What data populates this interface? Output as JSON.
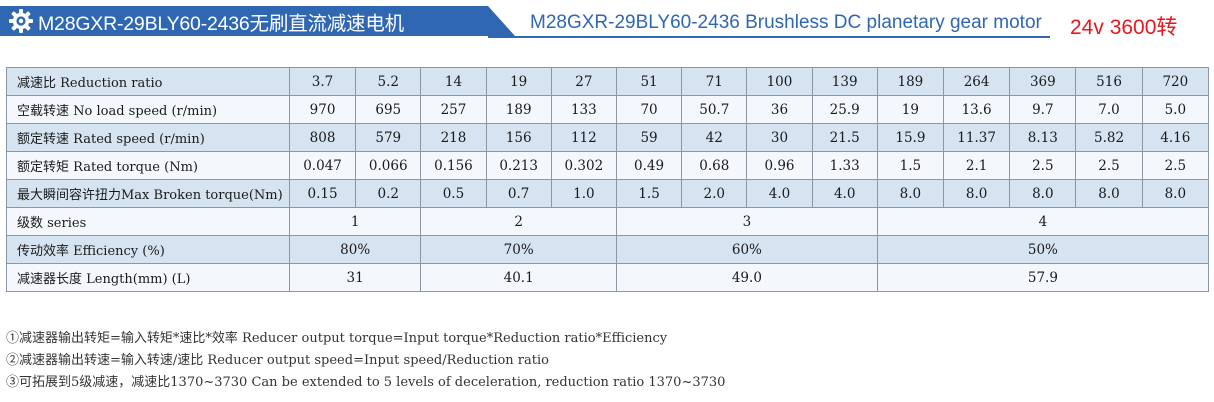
{
  "header": {
    "icon": "gear-icon",
    "title_cn": "M28GXR-29BLY60-2436无刷直流减速电机",
    "title_en": "M28GXR-29BLY60-2436 Brushless DC planetary gear motor",
    "spec": "24v 3600转",
    "colors": {
      "band": "#2f67b3",
      "spec": "#e5171f"
    }
  },
  "table": {
    "rows": [
      {
        "label": "减速比  Reduction ratio",
        "cells": [
          {
            "v": "3.7",
            "span": 1
          },
          {
            "v": "5.2",
            "span": 1
          },
          {
            "v": "14",
            "span": 1
          },
          {
            "v": "19",
            "span": 1
          },
          {
            "v": "27",
            "span": 1
          },
          {
            "v": "51",
            "span": 1
          },
          {
            "v": "71",
            "span": 1
          },
          {
            "v": "100",
            "span": 1
          },
          {
            "v": "139",
            "span": 1
          },
          {
            "v": "189",
            "span": 1
          },
          {
            "v": "264",
            "span": 1
          },
          {
            "v": "369",
            "span": 1
          },
          {
            "v": "516",
            "span": 1
          },
          {
            "v": "720",
            "span": 1
          }
        ]
      },
      {
        "label": "空载转速 No load speed (r/min)",
        "cells": [
          {
            "v": "970",
            "span": 1
          },
          {
            "v": "695",
            "span": 1
          },
          {
            "v": "257",
            "span": 1
          },
          {
            "v": "189",
            "span": 1
          },
          {
            "v": "133",
            "span": 1
          },
          {
            "v": "70",
            "span": 1
          },
          {
            "v": "50.7",
            "span": 1
          },
          {
            "v": "36",
            "span": 1
          },
          {
            "v": "25.9",
            "span": 1
          },
          {
            "v": "19",
            "span": 1
          },
          {
            "v": "13.6",
            "span": 1
          },
          {
            "v": "9.7",
            "span": 1
          },
          {
            "v": "7.0",
            "span": 1
          },
          {
            "v": "5.0",
            "span": 1
          }
        ]
      },
      {
        "label": "额定转速 Rated speed (r/min)",
        "cells": [
          {
            "v": "808",
            "span": 1
          },
          {
            "v": "579",
            "span": 1
          },
          {
            "v": "218",
            "span": 1
          },
          {
            "v": "156",
            "span": 1
          },
          {
            "v": "112",
            "span": 1
          },
          {
            "v": "59",
            "span": 1
          },
          {
            "v": "42",
            "span": 1
          },
          {
            "v": "30",
            "span": 1
          },
          {
            "v": "21.5",
            "span": 1
          },
          {
            "v": "15.9",
            "span": 1
          },
          {
            "v": "11.37",
            "span": 1
          },
          {
            "v": "8.13",
            "span": 1
          },
          {
            "v": "5.82",
            "span": 1
          },
          {
            "v": "4.16",
            "span": 1
          }
        ]
      },
      {
        "label": "额定转矩 Rated torque (Nm)",
        "cells": [
          {
            "v": "0.047",
            "span": 1
          },
          {
            "v": "0.066",
            "span": 1
          },
          {
            "v": "0.156",
            "span": 1
          },
          {
            "v": "0.213",
            "span": 1
          },
          {
            "v": "0.302",
            "span": 1
          },
          {
            "v": "0.49",
            "span": 1
          },
          {
            "v": "0.68",
            "span": 1
          },
          {
            "v": "0.96",
            "span": 1
          },
          {
            "v": "1.33",
            "span": 1
          },
          {
            "v": "1.5",
            "span": 1
          },
          {
            "v": "2.1",
            "span": 1
          },
          {
            "v": "2.5",
            "span": 1
          },
          {
            "v": "2.5",
            "span": 1
          },
          {
            "v": "2.5",
            "span": 1
          }
        ]
      },
      {
        "label": "最大瞬间容许扭力Max Broken torque(Nm)",
        "cells": [
          {
            "v": "0.15",
            "span": 1
          },
          {
            "v": "0.2",
            "span": 1
          },
          {
            "v": "0.5",
            "span": 1
          },
          {
            "v": "0.7",
            "span": 1
          },
          {
            "v": "1.0",
            "span": 1
          },
          {
            "v": "1.5",
            "span": 1
          },
          {
            "v": "2.0",
            "span": 1
          },
          {
            "v": "4.0",
            "span": 1
          },
          {
            "v": "4.0",
            "span": 1
          },
          {
            "v": "8.0",
            "span": 1
          },
          {
            "v": "8.0",
            "span": 1
          },
          {
            "v": "8.0",
            "span": 1
          },
          {
            "v": "8.0",
            "span": 1
          },
          {
            "v": "8.0",
            "span": 1
          }
        ]
      },
      {
        "label": "级数 series",
        "cells": [
          {
            "v": "1",
            "span": 2
          },
          {
            "v": "2",
            "span": 3
          },
          {
            "v": "3",
            "span": 4
          },
          {
            "v": "4",
            "span": 5
          }
        ]
      },
      {
        "label": "传动效率 Efficiency (%)",
        "cells": [
          {
            "v": "80%",
            "span": 2
          },
          {
            "v": "70%",
            "span": 3
          },
          {
            "v": "60%",
            "span": 4
          },
          {
            "v": "50%",
            "span": 5
          }
        ]
      },
      {
        "label": "减速器长度 Length(mm) (L)",
        "cells": [
          {
            "v": "31",
            "span": 2
          },
          {
            "v": "40.1",
            "span": 3
          },
          {
            "v": "49.0",
            "span": 4
          },
          {
            "v": "57.9",
            "span": 5
          }
        ]
      }
    ]
  },
  "notes": [
    "①减速器输出转矩=输入转矩*速比*效率  Reducer output torque=Input torque*Reduction ratio*Efficiency",
    "②减速器输出转速=输入转速/速比  Reducer output speed=Input speed/Reduction ratio",
    "③可拓展到5级减速，减速比1370~3730  Can be extended to 5 levels of deceleration, reduction ratio 1370~3730"
  ]
}
